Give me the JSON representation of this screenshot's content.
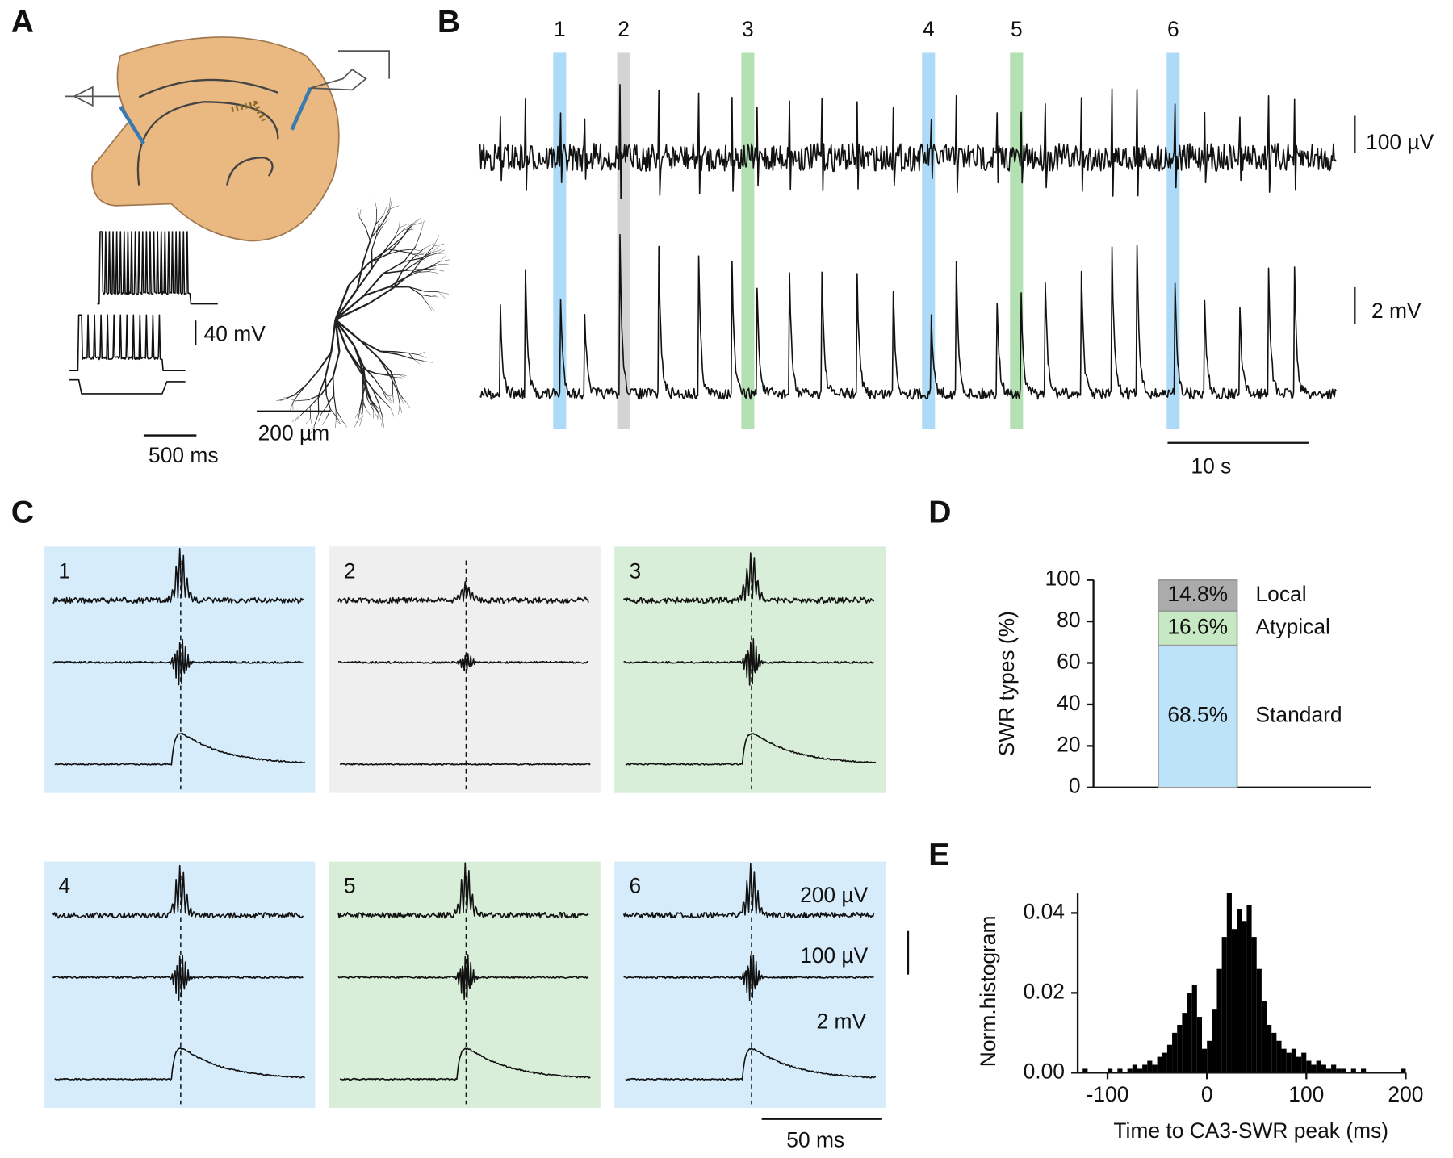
{
  "panels": {
    "a": {
      "label": "A",
      "scale_v": "40 mV",
      "scale_t": "500 ms",
      "scale_len": "200 µm"
    },
    "b": {
      "label": "B",
      "events": [
        "1",
        "2",
        "3",
        "4",
        "5",
        "6"
      ],
      "scale_lfp": "100 µV",
      "scale_vm": "2 mV",
      "scale_t": "10 s"
    },
    "c": {
      "label": "C",
      "events": [
        "1",
        "2",
        "3",
        "4",
        "5",
        "6"
      ],
      "scale_top": "200 µV",
      "scale_mid": "100 µV",
      "scale_vm": "2 mV",
      "scale_t": "50 ms"
    },
    "d": {
      "label": "D"
    },
    "e": {
      "label": "E"
    }
  },
  "chart_data": [
    {
      "type": "stacked-bar",
      "ylabel": "SWR types (%)",
      "categories": [
        null
      ],
      "series": [
        {
          "name": "Standard",
          "color": "#bde3f9",
          "values": [
            68.5
          ],
          "value_labels": [
            "68.5%"
          ]
        },
        {
          "name": "Atypical",
          "color": "#c6e8c2",
          "values": [
            16.6
          ],
          "value_labels": [
            "16.6%"
          ]
        },
        {
          "name": "Local",
          "color": "#ababab",
          "values": [
            14.8
          ],
          "value_labels": [
            "14.8%"
          ]
        }
      ],
      "ylim": [
        0,
        100
      ],
      "yticks": [
        0,
        20,
        40,
        60,
        80,
        100
      ]
    },
    {
      "type": "histogram",
      "xlabel": "Time to CA3-SWR peak (ms)",
      "ylabel": "Norm.histogram",
      "color": "#000000",
      "bins": [
        -130,
        -125,
        -120,
        -115,
        -110,
        -105,
        -100,
        -95,
        -90,
        -85,
        -80,
        -75,
        -70,
        -65,
        -60,
        -55,
        -50,
        -45,
        -40,
        -35,
        -30,
        -25,
        -20,
        -15,
        -10,
        -5,
        0,
        5,
        10,
        15,
        20,
        25,
        30,
        35,
        40,
        45,
        50,
        55,
        60,
        65,
        70,
        75,
        80,
        85,
        90,
        95,
        100,
        105,
        110,
        115,
        120,
        125,
        130,
        135,
        140,
        145,
        150,
        155,
        160,
        165,
        170,
        175,
        180,
        185,
        190,
        195,
        200
      ],
      "values": [
        0,
        0.001,
        0,
        0,
        0,
        0,
        0.001,
        0,
        0.001,
        0,
        0.001,
        0.002,
        0.001,
        0.002,
        0.003,
        0.002,
        0.004,
        0.005,
        0.007,
        0.01,
        0.012,
        0.015,
        0.02,
        0.022,
        0.014,
        0.006,
        0.008,
        0.016,
        0.026,
        0.034,
        0.045,
        0.036,
        0.041,
        0.038,
        0.042,
        0.034,
        0.026,
        0.018,
        0.012,
        0.01,
        0.008,
        0.006,
        0.005,
        0.006,
        0.004,
        0.005,
        0.003,
        0.002,
        0.003,
        0.002,
        0.001,
        0.002,
        0.001,
        0.001,
        0,
        0.001,
        0,
        0.001,
        0,
        0,
        0,
        0,
        0,
        0,
        0,
        0.001
      ],
      "xlim": [
        -130,
        200
      ],
      "ylim": [
        0,
        0.045
      ],
      "xticks": [
        -100,
        0,
        100,
        200
      ],
      "yticks": [
        {
          "value": 0,
          "label": "0.00"
        },
        {
          "value": 0.02,
          "label": "0.02"
        },
        {
          "value": 0.04,
          "label": "0.04"
        }
      ]
    }
  ]
}
